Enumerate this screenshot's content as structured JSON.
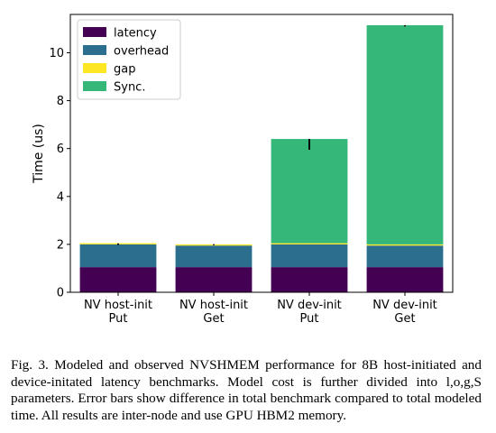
{
  "chart_data": {
    "type": "bar",
    "stacked": true,
    "categories": [
      "NV host-init\nPut",
      "NV host-init\nGet",
      "NV dev-init\nPut",
      "NV dev-init\nGet"
    ],
    "series": [
      {
        "name": "latency",
        "color": "#440154",
        "values": [
          1.05,
          1.05,
          1.05,
          1.05
        ]
      },
      {
        "name": "overhead",
        "color": "#2c6e8e",
        "values": [
          0.95,
          0.9,
          0.95,
          0.9
        ]
      },
      {
        "name": "gap",
        "color": "#fde725",
        "values": [
          0.05,
          0.05,
          0.05,
          0.05
        ]
      },
      {
        "name": "Sync.",
        "color": "#35b779",
        "values": [
          0.0,
          0.0,
          4.35,
          9.15
        ]
      }
    ],
    "error_bars": [
      {
        "y1": 1.98,
        "y2": 2.04
      },
      {
        "y1": 1.97,
        "y2": 2.01
      },
      {
        "y1": 5.95,
        "y2": 6.4
      },
      {
        "y1": 11.1,
        "y2": 11.15
      }
    ],
    "ylabel": "Time (us)",
    "xlabel": "",
    "title": "",
    "ylim": [
      0,
      11.6
    ],
    "yticks": [
      0,
      2,
      4,
      6,
      8,
      10
    ],
    "legend_position": "top-left",
    "grid": false
  },
  "caption": "Fig. 3.  Modeled and observed NVSHMEM performance for 8B host-initiated and device-initated latency benchmarks. Model cost is further divided into l,o,g,S parameters. Error bars show difference in total benchmark compared to total modeled time. All results are inter-node and use GPU HBM2 memory."
}
